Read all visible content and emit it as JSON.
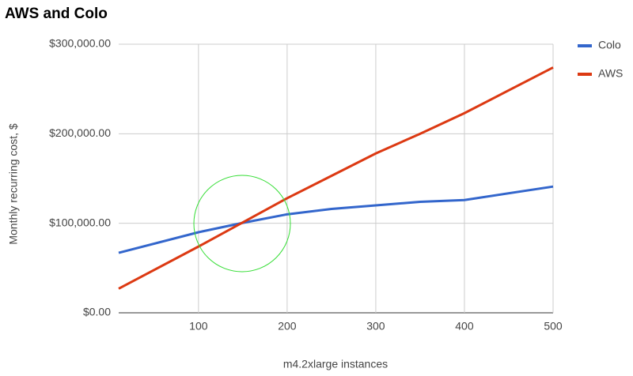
{
  "chart_data": {
    "type": "line",
    "title": "AWS and Colo",
    "x_label": "m4.2xlarge instances",
    "y_label": "Monthly recurring cost, $",
    "x": [
      10,
      100,
      150,
      200,
      250,
      300,
      350,
      400,
      500
    ],
    "series": [
      {
        "name": "Colo",
        "color": "#3366cc",
        "values": [
          67000,
          90000,
          100500,
          110000,
          116000,
          120000,
          124000,
          126000,
          141000
        ]
      },
      {
        "name": "AWS",
        "color": "#dc3912",
        "values": [
          27000,
          74000,
          101000,
          128000,
          153000,
          178000,
          200000,
          223000,
          274000
        ]
      }
    ],
    "xlim": [
      10,
      500
    ],
    "xticks": [
      100,
      200,
      300,
      400,
      500
    ],
    "ylim": [
      0,
      300000
    ],
    "yticks": [
      {
        "value": 0,
        "label": "$0.00"
      },
      {
        "value": 100000,
        "label": "$100,000.00"
      },
      {
        "value": 200000,
        "label": "$200,000.00"
      },
      {
        "value": 300000,
        "label": "$300,000.00"
      }
    ],
    "grid": true,
    "legend": "right"
  }
}
